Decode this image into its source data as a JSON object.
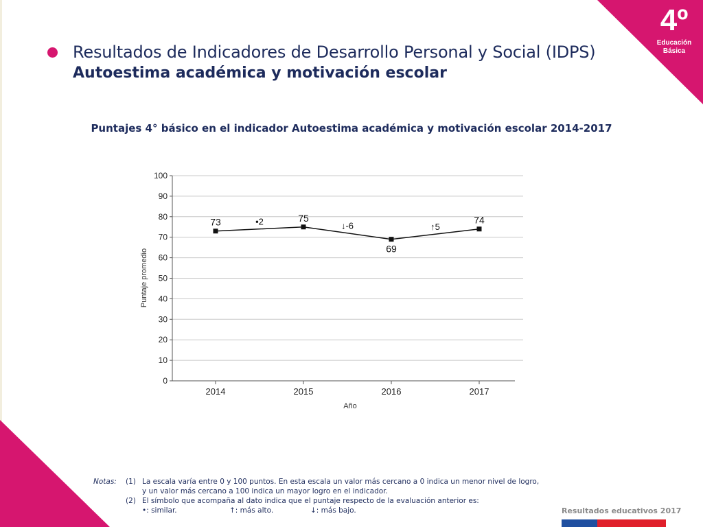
{
  "slide": {
    "title": "Resultados de Indicadores de Desarrollo Personal y Social (IDPS)",
    "subtitle": "Autoestima académica y motivación escolar",
    "badge_grade": "4º",
    "badge_line1": "Educación",
    "badge_line2": "Básica",
    "footer": "Resultados educativos 2017"
  },
  "colors": {
    "magenta": "#d6166f",
    "navy": "#1d2b5c",
    "flag_blue": "#1f4fa0",
    "flag_red": "#e0202b"
  },
  "chart_data": {
    "type": "line",
    "title": "Puntajes 4° básico en el indicador Autoestima académica y motivación escolar 2014-2017",
    "xlabel": "Año",
    "ylabel": "Puntaje promedio",
    "categories": [
      "2014",
      "2015",
      "2016",
      "2017"
    ],
    "series": [
      {
        "values": [
          73,
          75,
          69,
          74
        ]
      }
    ],
    "data_labels": [
      "73",
      "75",
      "69",
      "74"
    ],
    "change_labels": [
      "•2",
      "↓-6",
      "↑5"
    ],
    "ylim": [
      0,
      100
    ],
    "yticks": [
      0,
      10,
      20,
      30,
      40,
      50,
      60,
      70,
      80,
      90,
      100
    ],
    "grid": true,
    "legend": "none"
  },
  "notes": {
    "label": "Notas:",
    "n1": "(1)",
    "n1_line1": "La escala varía entre 0 y 100 puntos. En esta escala un valor más cercano a 0 indica un menor nivel de logro,",
    "n1_line2": "y un valor más cercano a 100 indica un mayor logro en el indicador.",
    "n2": "(2)",
    "n2_line1": "El símbolo que acompaña al dato indica que el puntaje respecto de la evaluación anterior es:",
    "sym_similar": "•: similar.",
    "sym_higher": "↑: más alto.",
    "sym_lower": "↓: más bajo."
  }
}
